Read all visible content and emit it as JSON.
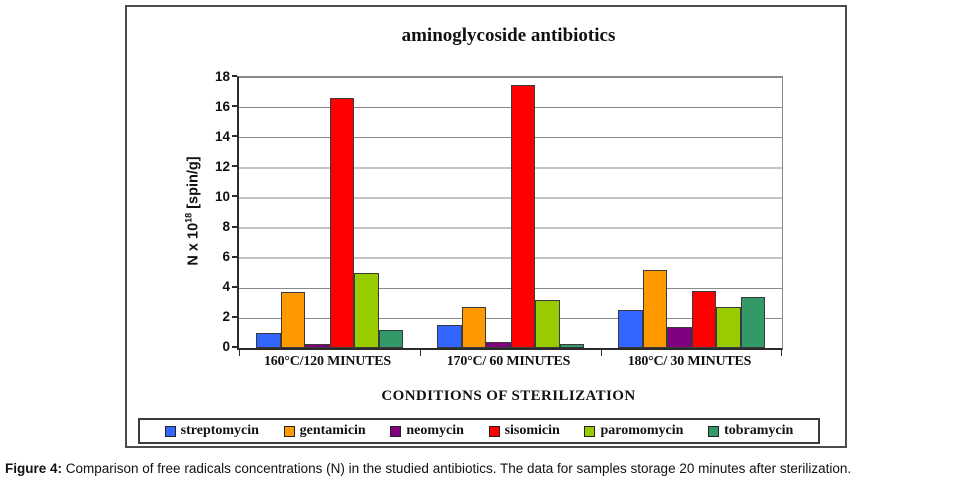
{
  "chart_data": {
    "type": "bar",
    "title": "aminoglycoside antibiotics",
    "xlabel": "CONDITIONS OF STERILIZATION",
    "ylabel": {
      "prefix": "N x 10",
      "sup": "18",
      "suffix": " [spin/g]"
    },
    "ylim": [
      0,
      18
    ],
    "yticks": [
      18,
      16,
      14,
      12,
      10,
      8,
      6,
      4,
      2,
      0
    ],
    "grid": "horizontal gridlines every 2 units",
    "legend_position": "bottom",
    "categories": [
      "160°C/120 MINUTES",
      "170°C/ 60 MINUTES",
      "180°C/ 30 MINUTES"
    ],
    "series": [
      {
        "name": "streptomycin",
        "color": "#3366FF",
        "values": [
          1.0,
          1.5,
          2.5
        ]
      },
      {
        "name": "gentamicin",
        "color": "#FF9900",
        "values": [
          3.7,
          2.7,
          5.2
        ]
      },
      {
        "name": "neomycin",
        "color": "#800080",
        "values": [
          0.25,
          0.4,
          1.4
        ]
      },
      {
        "name": "sisomicin",
        "color": "#FF0000",
        "values": [
          16.6,
          17.5,
          3.8
        ]
      },
      {
        "name": "paromomycin",
        "color": "#99CC00",
        "values": [
          5.0,
          3.2,
          2.7
        ]
      },
      {
        "name": "tobramycin",
        "color": "#339966",
        "values": [
          1.2,
          0.3,
          3.4
        ]
      }
    ]
  },
  "caption": {
    "label": "Figure 4:",
    "text": " Comparison of free radicals concentrations (N) in the studied antibiotics. The data for samples storage 20 minutes after sterilization."
  }
}
